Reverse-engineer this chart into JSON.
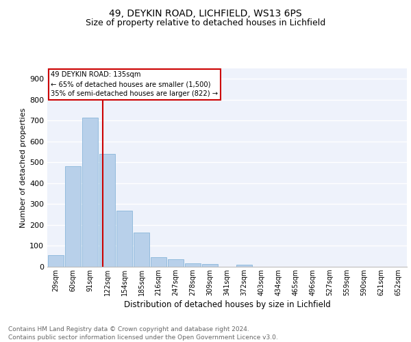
{
  "title1": "49, DEYKIN ROAD, LICHFIELD, WS13 6PS",
  "title2": "Size of property relative to detached houses in Lichfield",
  "xlabel": "Distribution of detached houses by size in Lichfield",
  "ylabel": "Number of detached properties",
  "footnote": "Contains HM Land Registry data © Crown copyright and database right 2024.\nContains public sector information licensed under the Open Government Licence v3.0.",
  "categories": [
    "29sqm",
    "60sqm",
    "91sqm",
    "122sqm",
    "154sqm",
    "185sqm",
    "216sqm",
    "247sqm",
    "278sqm",
    "309sqm",
    "341sqm",
    "372sqm",
    "403sqm",
    "434sqm",
    "465sqm",
    "496sqm",
    "527sqm",
    "559sqm",
    "590sqm",
    "621sqm",
    "652sqm"
  ],
  "values": [
    57,
    480,
    715,
    540,
    270,
    165,
    47,
    35,
    18,
    13,
    0,
    10,
    0,
    0,
    0,
    0,
    0,
    0,
    0,
    0,
    0
  ],
  "bar_color": "#b8d0ea",
  "bar_edge_color": "#7aadd4",
  "vline_color": "#cc0000",
  "annotation_text": "49 DEYKIN ROAD: 135sqm\n← 65% of detached houses are smaller (1,500)\n35% of semi-detached houses are larger (822) →",
  "annotation_box_color": "#cc0000",
  "ylim": [
    0,
    950
  ],
  "yticks": [
    0,
    100,
    200,
    300,
    400,
    500,
    600,
    700,
    800,
    900
  ],
  "background_color": "#eef2fb",
  "grid_color": "#ffffff",
  "title1_fontsize": 10,
  "title2_fontsize": 9,
  "xlabel_fontsize": 8.5,
  "ylabel_fontsize": 8,
  "footnote_fontsize": 6.5
}
